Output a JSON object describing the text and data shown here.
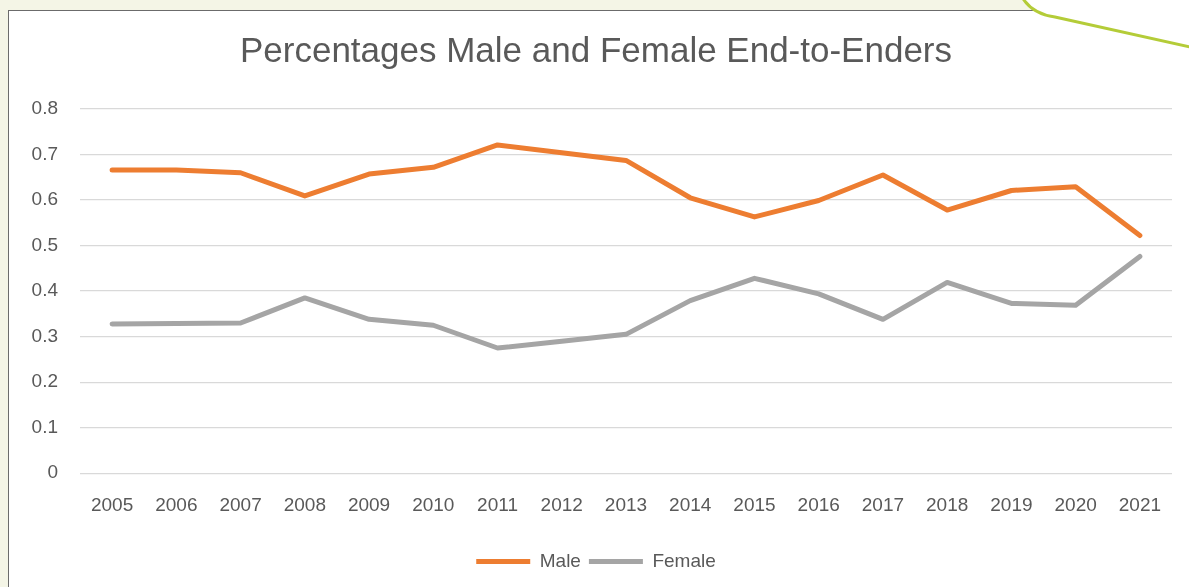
{
  "chart_data": {
    "type": "line",
    "title": "Percentages Male and Female End-to-Enders",
    "categories": [
      "2005",
      "2006",
      "2007",
      "2008",
      "2009",
      "2010",
      "2011",
      "2012",
      "2013",
      "2014",
      "2015",
      "2016",
      "2017",
      "2018",
      "2019",
      "2020",
      "2021"
    ],
    "series": [
      {
        "name": "Male",
        "color": "#ed7d31",
        "values": [
          0.666,
          0.666,
          0.66,
          0.609,
          0.657,
          0.672,
          0.721,
          0.704,
          0.687,
          0.605,
          0.563,
          0.599,
          0.655,
          0.578,
          0.621,
          0.629,
          0.522
        ]
      },
      {
        "name": "Female",
        "color": "#a5a5a5",
        "values": [
          0.328,
          0.329,
          0.33,
          0.385,
          0.338,
          0.325,
          0.275,
          0.29,
          0.305,
          0.379,
          0.428,
          0.394,
          0.338,
          0.419,
          0.373,
          0.369,
          0.476
        ]
      }
    ],
    "ylim": [
      0,
      0.8
    ],
    "yticks": [
      0,
      0.1,
      0.2,
      0.3,
      0.4,
      0.5,
      0.6,
      0.7,
      0.8
    ],
    "grid": "y",
    "legend": "bottom",
    "line_style": "solid"
  }
}
